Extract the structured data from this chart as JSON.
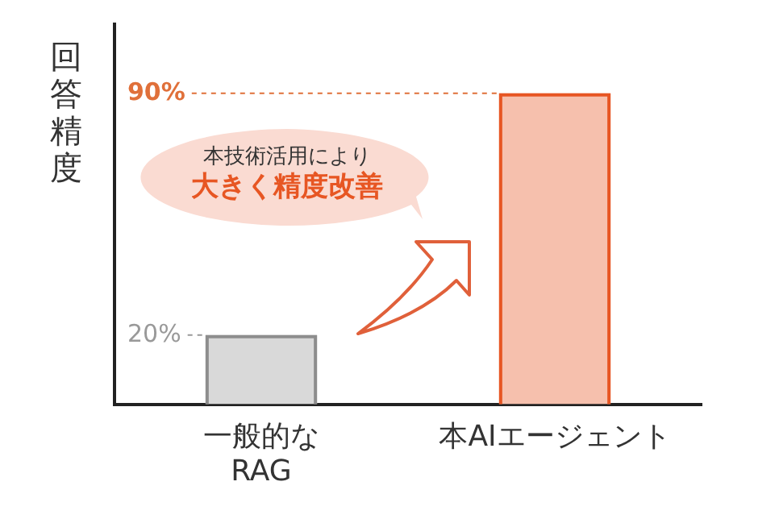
{
  "chart_data": {
    "type": "bar",
    "ylabel": "回答精度",
    "categories": [
      "一般的な\nRAG",
      "本AIエージェント"
    ],
    "values": [
      20,
      90
    ],
    "ylim": [
      0,
      110
    ],
    "colors": [
      "#d9d9d9",
      "#f6c0ad"
    ],
    "ref_lines": [
      {
        "axis": "y",
        "value": 20,
        "label": "20%",
        "color": "#999999",
        "line_style": "dashed"
      },
      {
        "axis": "y",
        "value": 90,
        "label": "90%",
        "color": "#e0703a",
        "line_style": "dashed"
      }
    ],
    "annotations": [
      "本技術活用により",
      "大きく精度改善"
    ],
    "grid": false,
    "legend": false
  }
}
